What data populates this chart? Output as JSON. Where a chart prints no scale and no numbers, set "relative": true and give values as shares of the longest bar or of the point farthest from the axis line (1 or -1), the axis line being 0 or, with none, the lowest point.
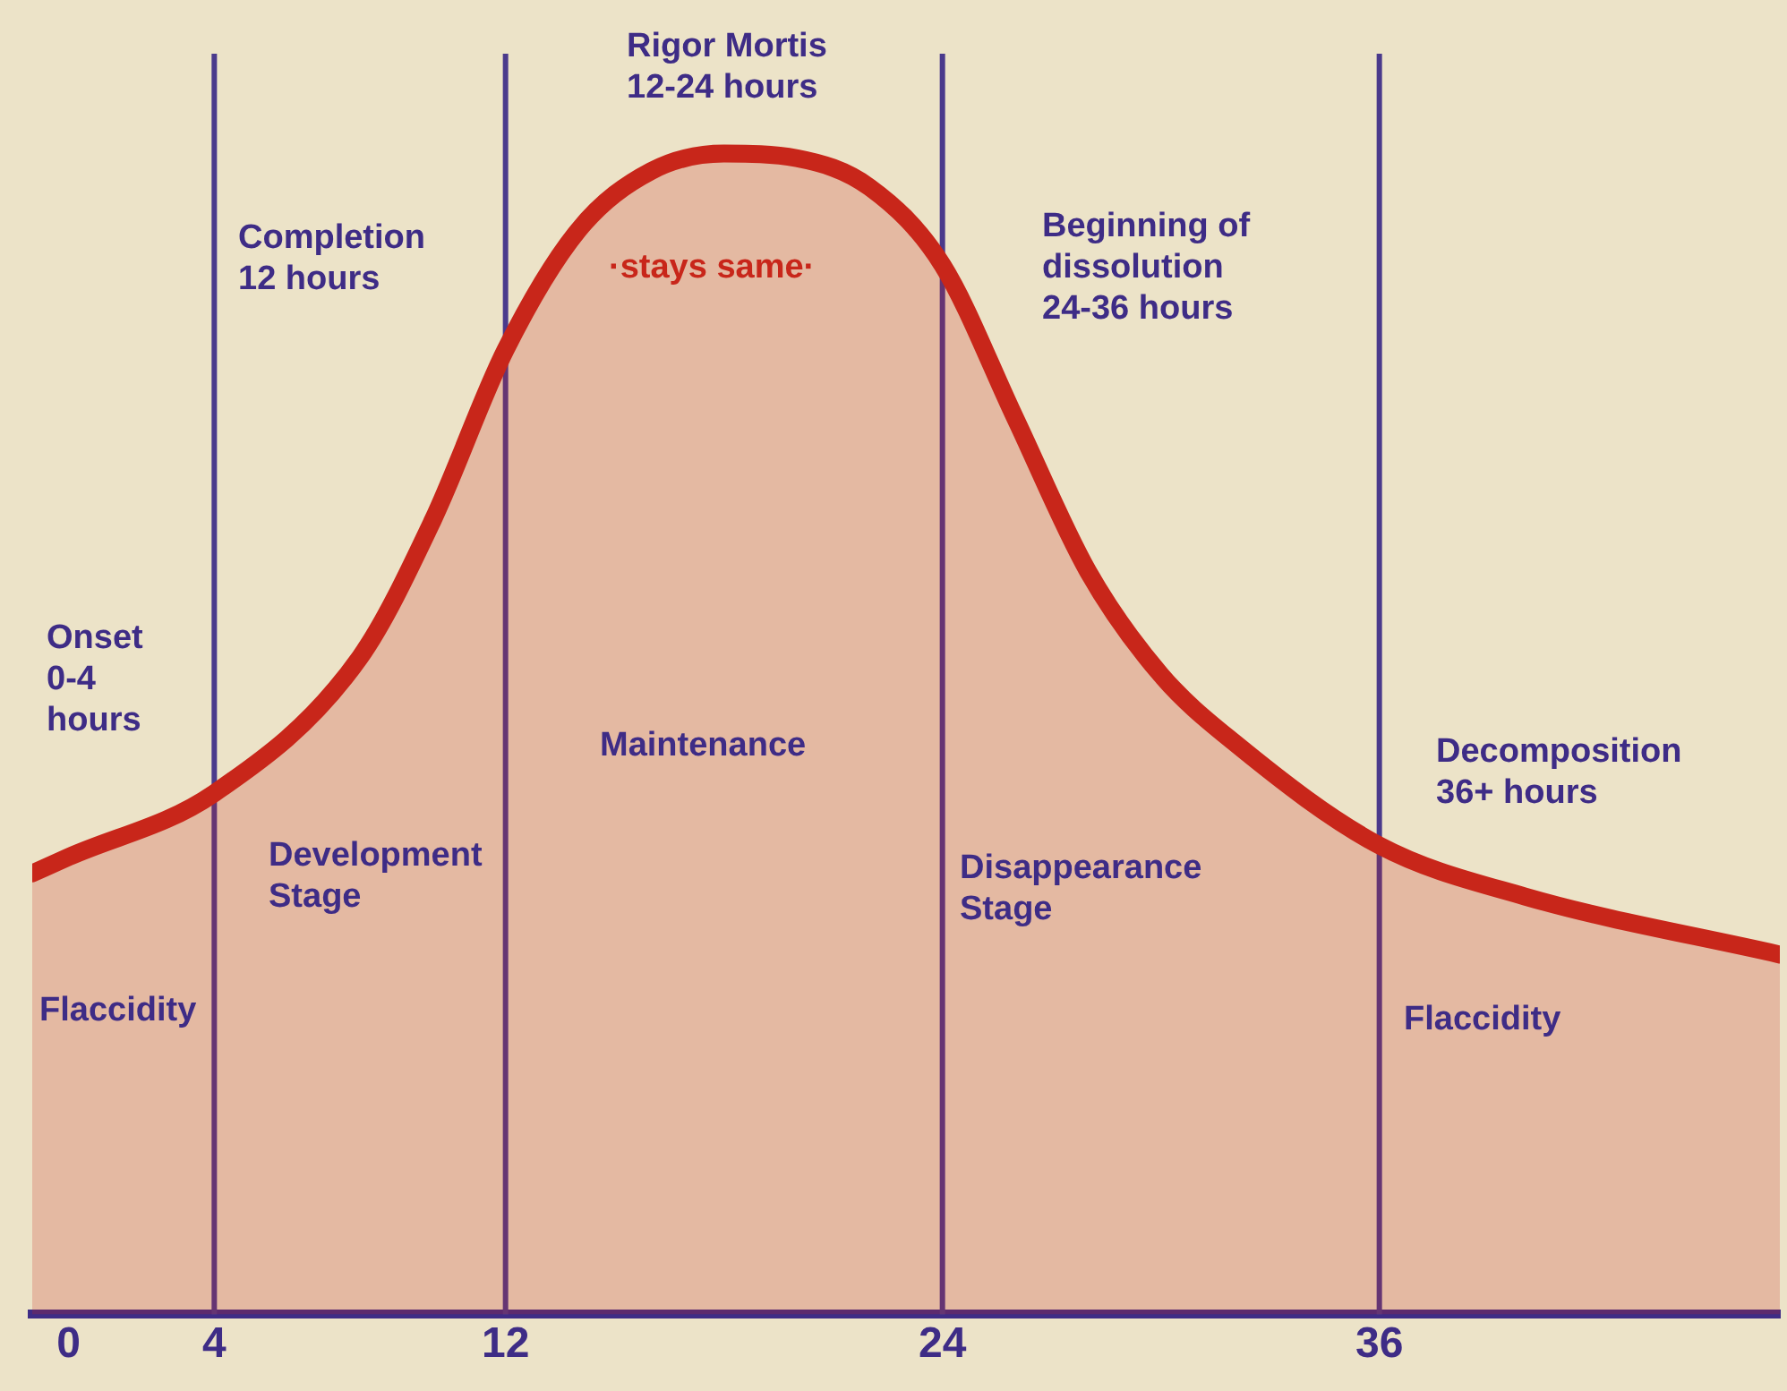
{
  "chart_data": {
    "type": "area",
    "relative": true,
    "x": [
      -1,
      0,
      4,
      8,
      10,
      12,
      14,
      16,
      18,
      20,
      22,
      24,
      26,
      28,
      30,
      32,
      36,
      40,
      47
    ],
    "series": [
      {
        "color": "#c8261a",
        "values": [
          0.38,
          0.394,
          0.449,
          0.566,
          0.684,
          0.831,
          0.934,
          0.985,
          1,
          0.996,
          0.971,
          0.904,
          0.772,
          0.64,
          0.551,
          0.493,
          0.404,
          0.36,
          0.31
        ]
      }
    ],
    "xlim": [
      -1,
      47
    ],
    "xticks": [
      0,
      4,
      12,
      24,
      36
    ],
    "tick_labels": "x",
    "grid": false,
    "legend": false,
    "ref_lines": [
      {
        "axis": "x",
        "value": 4,
        "color": "#4a3a8c"
      },
      {
        "axis": "x",
        "value": 12,
        "color": "#4a3a8c"
      },
      {
        "axis": "x",
        "value": 24,
        "color": "#4a3a8c"
      },
      {
        "axis": "x",
        "value": 36,
        "color": "#4a3a8c"
      }
    ],
    "annotations": [
      "Rigor Mortis\n12-24 hours",
      "Completion\n12 hours",
      "·stays same·",
      "Beginning of\ndissolution\n24-36 hours",
      "Onset\n0-4\nhours",
      "Maintenance",
      "Decomposition\n36+ hours",
      "Development\nStage",
      "Disappearance\nStage",
      "Flaccidity",
      "Flaccidity"
    ]
  }
}
